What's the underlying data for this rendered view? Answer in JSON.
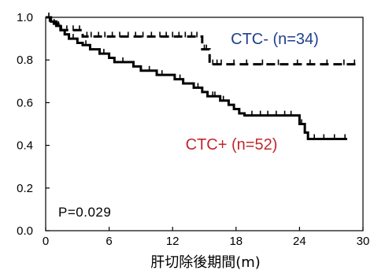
{
  "chart_data": {
    "type": "line",
    "title": "",
    "xlabel": "肝切除後期間(m)",
    "ylabel": "",
    "xlim": [
      0,
      30
    ],
    "ylim": [
      0,
      1.0
    ],
    "x_ticks": [
      "0",
      "6",
      "12",
      "18",
      "24",
      "30"
    ],
    "y_ticks": [
      "0.0",
      "0.2",
      "0.4",
      "0.6",
      "0.8",
      "1.0"
    ],
    "annotation": "P=0.029",
    "grid": false,
    "series": [
      {
        "name": "CTC- (n=34)",
        "style": "dashed",
        "color": "#1f3f8f",
        "steps": [
          [
            0,
            1.0
          ],
          [
            0.4,
            0.97
          ],
          [
            1.2,
            0.94
          ],
          [
            3.5,
            0.91
          ],
          [
            14.8,
            0.85
          ],
          [
            15.5,
            0.78
          ],
          [
            29.5,
            0.78
          ]
        ],
        "censor_x": [
          0.8,
          1.5,
          2.0,
          2.6,
          3.2,
          3.9,
          4.3,
          5.0,
          5.6,
          6.3,
          7.0,
          7.8,
          8.5,
          9.2,
          10.0,
          10.8,
          11.4,
          12.0,
          12.6,
          13.2,
          13.8,
          14.3,
          15.0,
          15.2,
          15.8,
          16.2,
          16.6,
          17.8,
          19.0,
          20.5,
          22.0,
          23.8,
          25.0,
          26.6,
          28.2,
          29.2
        ]
      },
      {
        "name": "CTC+ (n=52)",
        "style": "solid",
        "color": "#c0282d",
        "steps": [
          [
            0,
            1.0
          ],
          [
            0.5,
            0.98
          ],
          [
            1.0,
            0.96
          ],
          [
            1.4,
            0.94
          ],
          [
            1.8,
            0.92
          ],
          [
            2.2,
            0.9
          ],
          [
            3.0,
            0.88
          ],
          [
            3.5,
            0.87
          ],
          [
            4.2,
            0.85
          ],
          [
            5.1,
            0.83
          ],
          [
            6.0,
            0.81
          ],
          [
            6.5,
            0.79
          ],
          [
            8.3,
            0.77
          ],
          [
            9.0,
            0.75
          ],
          [
            10.5,
            0.73
          ],
          [
            12.2,
            0.71
          ],
          [
            13.0,
            0.69
          ],
          [
            14.0,
            0.67
          ],
          [
            14.8,
            0.65
          ],
          [
            15.3,
            0.63
          ],
          [
            16.5,
            0.61
          ],
          [
            17.3,
            0.59
          ],
          [
            17.8,
            0.57
          ],
          [
            18.3,
            0.55
          ],
          [
            18.8,
            0.54
          ],
          [
            24.0,
            0.5
          ],
          [
            24.5,
            0.46
          ],
          [
            24.8,
            0.43
          ],
          [
            28.5,
            0.43
          ]
        ],
        "censor_x": [
          0.3,
          1.2,
          2.6,
          3.8,
          5.5,
          7.3,
          9.8,
          11.0,
          12.7,
          14.4,
          15.8,
          16.0,
          16.8,
          19.5,
          20.3,
          21.0,
          21.8,
          22.6,
          23.2,
          24.2,
          25.4,
          26.3,
          27.3,
          28.3
        ]
      }
    ]
  }
}
